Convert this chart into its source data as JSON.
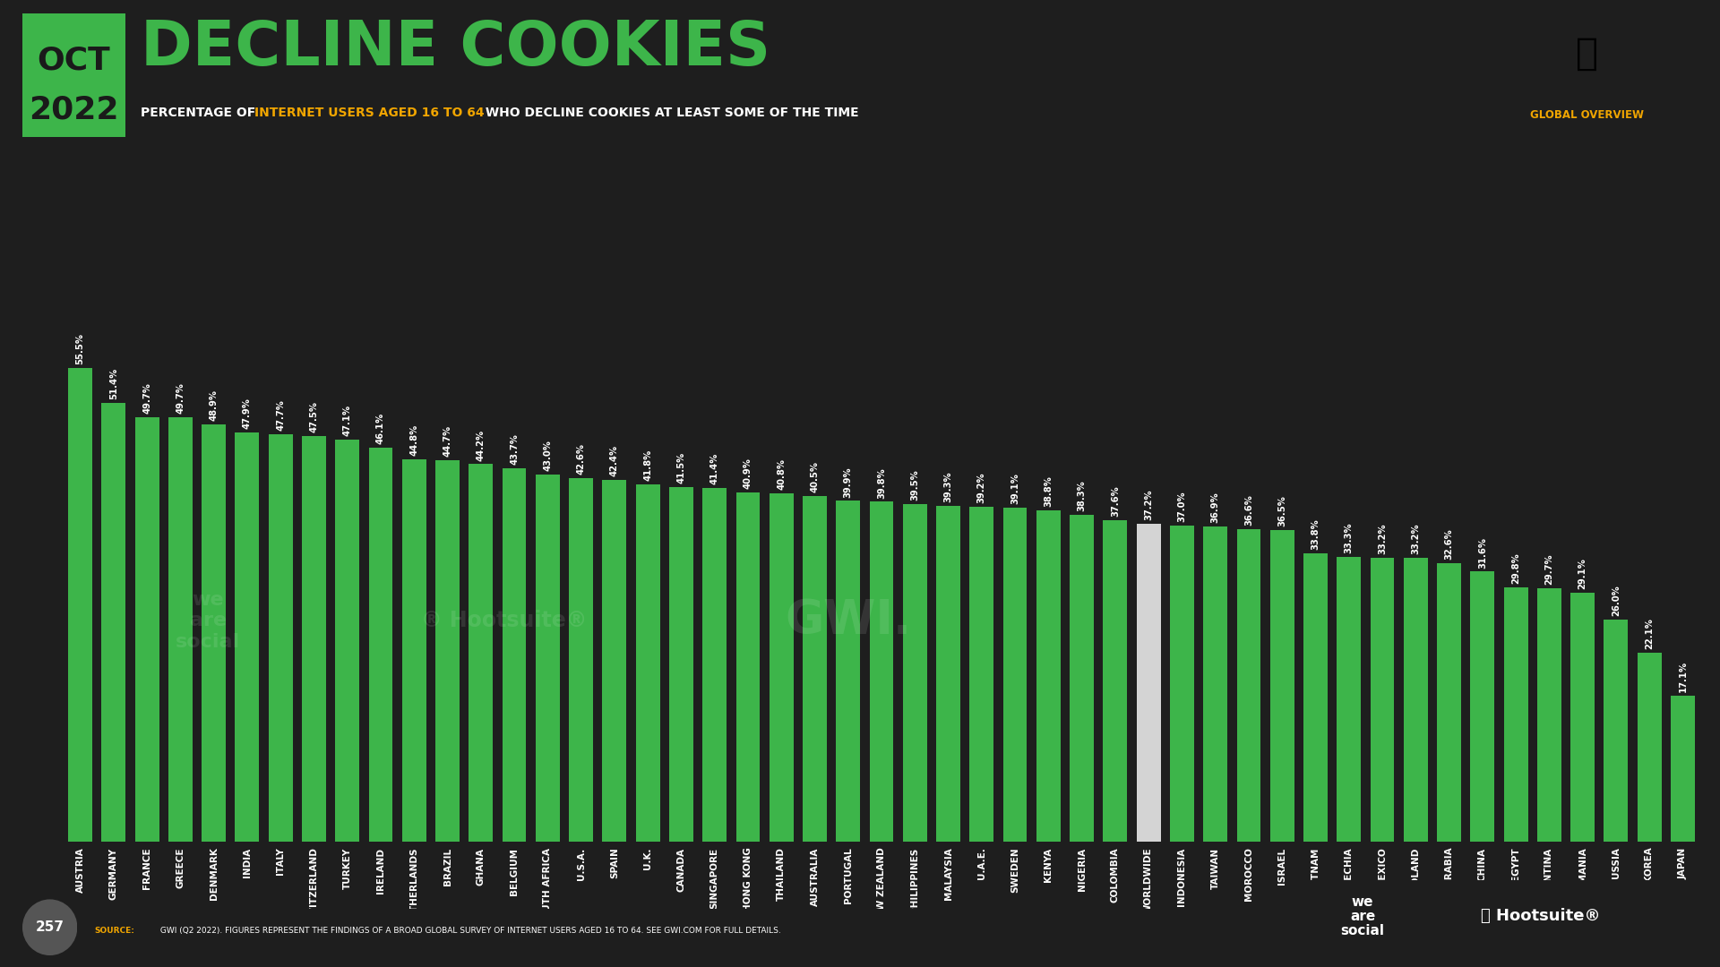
{
  "title": "DECLINE COOKIES",
  "subtitle_part1": "PERCENTAGE OF ",
  "subtitle_highlight": "INTERNET USERS AGED 16 TO 64",
  "subtitle_part2": " WHO DECLINE COOKIES AT LEAST SOME OF THE TIME",
  "global_overview": "GLOBAL OVERVIEW",
  "source_label": "SOURCE:",
  "source_rest": " GWI (Q2 2022). FIGURES REPRESENT THE FINDINGS OF A BROAD GLOBAL SURVEY OF INTERNET USERS AGED 16 TO 64. SEE GWI.COM FOR FULL DETAILS.",
  "page_number": "257",
  "categories": [
    "AUSTRIA",
    "GERMANY",
    "FRANCE",
    "GREECE",
    "DENMARK",
    "INDIA",
    "ITALY",
    "SWITZERLAND",
    "TURKEY",
    "IRELAND",
    "NETHERLANDS",
    "BRAZIL",
    "GHANA",
    "BELGIUM",
    "SOUTH AFRICA",
    "U.S.A.",
    "SPAIN",
    "U.K.",
    "CANADA",
    "SINGAPORE",
    "HONG KONG",
    "THAILAND",
    "AUSTRALIA",
    "PORTUGAL",
    "NEW ZEALAND",
    "PHILIPPINES",
    "MALAYSIA",
    "U.A.E.",
    "SWEDEN",
    "KENYA",
    "NIGERIA",
    "COLOMBIA",
    "WORLDWIDE",
    "INDONESIA",
    "TAIWAN",
    "MOROCCO",
    "ISRAEL",
    "VIETNAM",
    "CZECHIA",
    "MEXICO",
    "POLAND",
    "SAUDI ARABIA",
    "CHINA",
    "EGYPT",
    "ARGENTINA",
    "ROMANIA",
    "RUSSIA",
    "SOUTH KOREA",
    "JAPAN"
  ],
  "values": [
    55.5,
    51.4,
    49.7,
    49.7,
    48.9,
    47.9,
    47.7,
    47.5,
    47.1,
    46.1,
    44.8,
    44.7,
    44.2,
    43.7,
    43.0,
    42.6,
    42.4,
    41.8,
    41.5,
    41.4,
    40.9,
    40.8,
    40.5,
    39.9,
    39.8,
    39.5,
    39.3,
    39.2,
    39.1,
    38.8,
    38.3,
    37.6,
    37.2,
    37.0,
    36.9,
    36.6,
    36.5,
    33.8,
    33.3,
    33.2,
    33.2,
    32.6,
    31.6,
    29.8,
    29.7,
    29.1,
    26.0,
    22.1,
    17.1
  ],
  "bar_color": "#3db54a",
  "worldwide_color": "#d4d4d4",
  "worldwide_index": 32,
  "bg_color": "#1e1e1e",
  "title_color": "#3db54a",
  "date_bg_color": "#3db54a",
  "date_text_color": "#1a1a1a",
  "subtitle_highlight_color": "#f0a500",
  "subtitle_text_color": "#ffffff",
  "value_label_color": "#ffffff",
  "axis_label_color": "#ffffff",
  "global_overview_color": "#f0a500"
}
